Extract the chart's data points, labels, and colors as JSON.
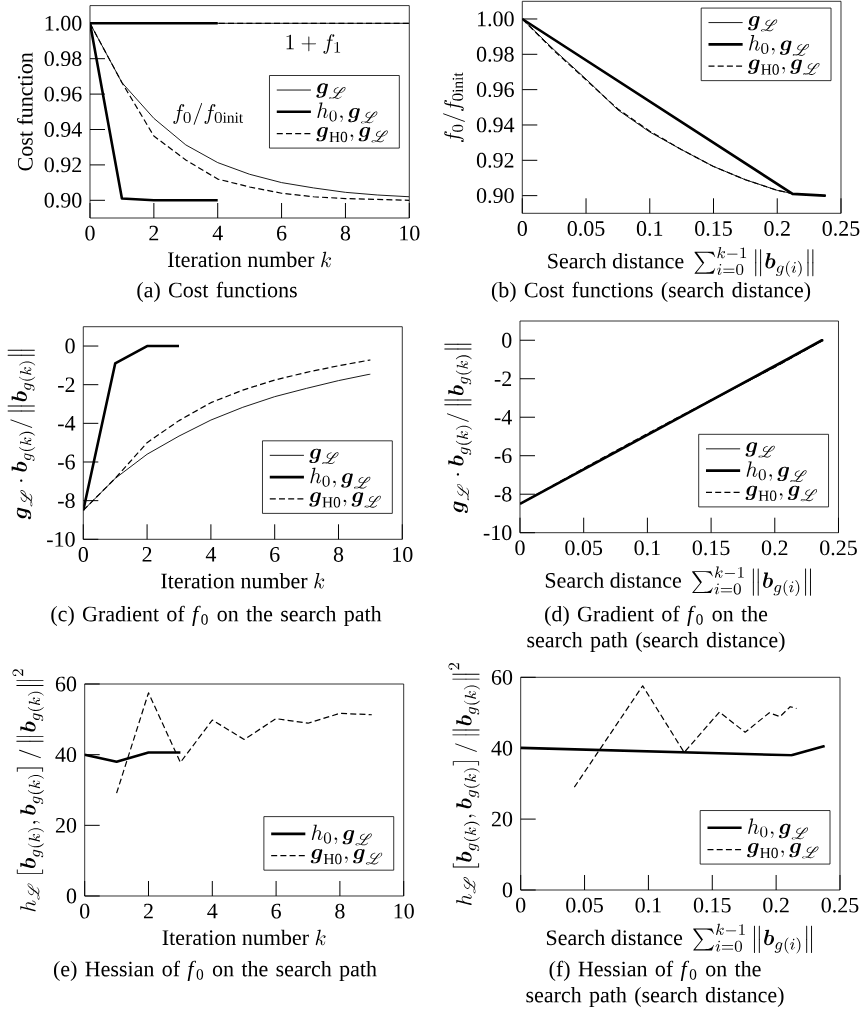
{
  "chart_data": [
    {
      "type": "line",
      "title": "(a) Cost functions",
      "xlabel": "\\text{Iteration number } k",
      "ylabel": "\\text{Cost function}",
      "xlim": [
        0,
        10
      ],
      "ylim": [
        0.89,
        1.01
      ],
      "xticks": [
        0,
        2,
        4,
        6,
        8,
        10
      ],
      "yticks": [
        {
          "value": 0.9,
          "label": "0.90"
        },
        {
          "value": 0.92,
          "label": "0.92"
        },
        {
          "value": 0.94,
          "label": "0.94"
        },
        {
          "value": 0.96,
          "label": "0.96"
        },
        {
          "value": 0.98,
          "label": "0.98"
        },
        {
          "value": 1.0,
          "label": "1.00"
        }
      ],
      "legend": "right",
      "annotations": [
        "1 + f_1",
        "f_0 / f_{0\\mathrm{init}}"
      ],
      "series": [
        {
          "name": "\\boldsymbol{g}_{\\mathscr{L}}",
          "color": "#000000",
          "line_style": "solid",
          "x": [
            0,
            1,
            2,
            3,
            4,
            5,
            6,
            7,
            8,
            9,
            10
          ],
          "values": [
            1.0,
            0.9665,
            0.9463,
            0.9313,
            0.9213,
            0.9147,
            0.91,
            0.907,
            0.9045,
            0.903,
            0.902
          ]
        },
        {
          "name": "h_0, \\boldsymbol{g}_{\\mathscr{L}}",
          "color": "#000000",
          "line_style": "solid",
          "x": [
            0,
            1,
            2,
            3,
            4
          ],
          "values": [
            1.0,
            0.901,
            0.9,
            0.9,
            0.9
          ]
        },
        {
          "name": "\\boldsymbol{g}_{\\mathrm{H0}}, \\boldsymbol{g}_{\\mathscr{L}}",
          "color": "#000000",
          "line_style": "dashed",
          "x": [
            0,
            1,
            2,
            3,
            4,
            5,
            6,
            7,
            8,
            9,
            10
          ],
          "values": [
            1.0,
            0.9665,
            0.9363,
            0.9228,
            0.912,
            0.9075,
            0.904,
            0.902,
            0.901,
            0.9005,
            0.9
          ]
        },
        {
          "color": "#000000",
          "line_style": "solid",
          "x": [
            0,
            10
          ],
          "values": [
            1.0,
            1.0
          ]
        },
        {
          "color": "#000000",
          "line_style": "solid",
          "x": [
            0,
            4
          ],
          "values": [
            1.0,
            1.0
          ]
        },
        {
          "color": "#000000",
          "line_style": "dashed",
          "x": [
            0,
            10
          ],
          "values": [
            1.0,
            1.0
          ]
        }
      ]
    },
    {
      "type": "line",
      "title": "(b) Cost functions (search distance)",
      "xlabel": "\\text{Search distance } \\sum_{i=0}^{k-1} \\left\\| \\boldsymbol{b}_{g(i)} \\right\\|",
      "ylabel": "f_0 / f_{0\\mathrm{init}}",
      "xlim": [
        0,
        0.25
      ],
      "ylim": [
        0.89,
        1.01
      ],
      "xticks": [
        0,
        0.05,
        0.1,
        0.15,
        0.2,
        0.25
      ],
      "yticks": [
        {
          "value": 0.9,
          "label": "0.90"
        },
        {
          "value": 0.92,
          "label": "0.92"
        },
        {
          "value": 0.94,
          "label": "0.94"
        },
        {
          "value": 0.96,
          "label": "0.96"
        },
        {
          "value": 0.98,
          "label": "0.98"
        },
        {
          "value": 1.0,
          "label": "1.00"
        }
      ],
      "legend": "top right",
      "series": [
        {
          "name": "\\boldsymbol{g}_{\\mathscr{L}}",
          "color": "#000000",
          "line_style": "solid",
          "x": [
            0,
            0.025,
            0.05,
            0.075,
            0.1,
            0.125,
            0.15,
            0.175,
            0.2,
            0.213,
            0.238
          ],
          "values": [
            1.0,
            0.9825,
            0.966,
            0.9485,
            0.936,
            0.926,
            0.9165,
            0.909,
            0.903,
            0.901,
            0.9
          ]
        },
        {
          "name": "h_0, \\boldsymbol{g}_{\\mathscr{L}}",
          "color": "#000000",
          "line_style": "solid",
          "x": [
            0,
            0.212,
            0.237,
            0.238
          ],
          "values": [
            1.0,
            0.901,
            0.9,
            0.9
          ]
        },
        {
          "name": "\\boldsymbol{g}_{\\mathrm{H0}}, \\boldsymbol{g}_{\\mathscr{L}}",
          "color": "#000000",
          "line_style": "dashed",
          "x": [
            0,
            0.025,
            0.05,
            0.075,
            0.1,
            0.125,
            0.15,
            0.175,
            0.2,
            0.213,
            0.238
          ],
          "values": [
            1.0,
            0.982,
            0.9655,
            0.949,
            0.9365,
            0.926,
            0.9165,
            0.909,
            0.903,
            0.901,
            0.9
          ]
        }
      ]
    },
    {
      "type": "line",
      "title": "(c) Gradient of *f*$_{0}$ on the search path",
      "xlabel": "\\text{Iteration number } k",
      "ylabel": "\\boldsymbol{g}_{\\mathscr{L}} \\cdot \\boldsymbol{b}_{g(k)} / \\left\\| \\boldsymbol{b}_{g(k)} \\right\\|",
      "xlim": [
        0,
        10
      ],
      "ylim": [
        -10,
        1
      ],
      "xticks": [
        0,
        2,
        4,
        6,
        8,
        10
      ],
      "yticks": [
        -10,
        -8,
        -6,
        -4,
        -2,
        0
      ],
      "legend": "bottom right",
      "series": [
        {
          "name": "\\boldsymbol{g}_{\\mathscr{L}}",
          "color": "#000000",
          "line_style": "solid",
          "x": [
            0,
            1,
            2,
            3,
            4,
            5,
            6,
            7,
            8,
            9
          ],
          "values": [
            -8.5,
            -6.85,
            -5.6,
            -4.66,
            -3.83,
            -3.17,
            -2.62,
            -2.19,
            -1.79,
            -1.45
          ]
        },
        {
          "name": "h_0, \\boldsymbol{g}_{\\mathscr{L}}",
          "color": "#000000",
          "line_style": "solid",
          "x": [
            0,
            1,
            2,
            3
          ],
          "values": [
            -8.5,
            -0.9,
            0,
            0
          ]
        },
        {
          "name": "\\boldsymbol{g}_{\\mathrm{H0}}, \\boldsymbol{g}_{\\mathscr{L}}",
          "color": "#000000",
          "line_style": "dashed",
          "x": [
            0,
            1,
            2,
            3,
            4,
            5,
            6,
            7,
            8,
            9
          ],
          "values": [
            -8.5,
            -6.85,
            -5.0,
            -3.86,
            -2.93,
            -2.28,
            -1.76,
            -1.36,
            -1.02,
            -0.72
          ]
        }
      ]
    },
    {
      "type": "line",
      "title": "(d) Gradient of *f*$_{0}$ on the search path (search distance)",
      "xlabel": "\\text{Search distance } \\sum_{i=0}^{k-1} \\left\\| \\boldsymbol{b}_{g(i)} \\right\\|",
      "ylabel": "\\boldsymbol{g}_{\\mathscr{L}} \\cdot \\boldsymbol{b}_{g(k)} / \\left\\| \\boldsymbol{b}_{g(k)} \\right\\|",
      "xlim": [
        0,
        0.25
      ],
      "ylim": [
        -10,
        1
      ],
      "xticks": [
        0,
        0.05,
        0.1,
        0.15,
        0.2,
        0.25
      ],
      "yticks": [
        -10,
        -8,
        -6,
        -4,
        -2,
        0
      ],
      "legend": "bottom right",
      "series": [
        {
          "name": "\\boldsymbol{g}_{\\mathscr{L}}",
          "color": "#000000",
          "line_style": "solid",
          "x": [
            0,
            0.05,
            0.1,
            0.15,
            0.2,
            0.238
          ],
          "values": [
            -8.5,
            -6.7,
            -4.9,
            -3.15,
            -1.4,
            0
          ]
        },
        {
          "name": "h_0, \\boldsymbol{g}_{\\mathscr{L}}",
          "color": "#000000",
          "line_style": "solid",
          "x": [
            0,
            0.212,
            0.237,
            0.238
          ],
          "values": [
            -8.5,
            -0.9,
            0,
            0
          ]
        },
        {
          "name": "\\boldsymbol{g}_{\\mathrm{H0}}, \\boldsymbol{g}_{\\mathscr{L}}",
          "color": "#000000",
          "line_style": "dashed",
          "x": [
            0,
            0.05,
            0.1,
            0.15,
            0.2,
            0.238
          ],
          "values": [
            -8.5,
            -6.65,
            -4.85,
            -3.1,
            -1.4,
            0
          ]
        }
      ]
    },
    {
      "type": "line",
      "title": "(e) Hessian of *f*$_{0}$ on the search path",
      "xlabel": "\\text{Iteration number } k",
      "ylabel": "h_{\\mathscr{L}} \\left[ \\boldsymbol{b}_{g(k)}, \\boldsymbol{b}_{g(k)} \\right] / \\left\\| \\boldsymbol{b}_{g(k)} \\right\\|^2",
      "xlim": [
        0,
        10
      ],
      "ylim": [
        0,
        60
      ],
      "xticks": [
        0,
        2,
        4,
        6,
        8,
        10
      ],
      "yticks": [
        0,
        20,
        40,
        60
      ],
      "legend": "bottom right",
      "series": [
        {
          "name": "h_0, \\boldsymbol{g}_{\\mathscr{L}}",
          "color": "#000000",
          "line_style": "solid",
          "x": [
            0,
            1,
            2,
            3
          ],
          "values": [
            40,
            38,
            40.6,
            40.6
          ]
        },
        {
          "name": "\\boldsymbol{g}_{\\mathrm{H0}}, \\boldsymbol{g}_{\\mathscr{L}}",
          "color": "#000000",
          "line_style": "dashed",
          "x": [
            1,
            2,
            3,
            4,
            5,
            6,
            7,
            8,
            9
          ],
          "values": [
            29.1,
            57.5,
            37.8,
            49.8,
            44.3,
            50.2,
            48.9,
            51.7,
            51.3
          ]
        }
      ]
    },
    {
      "type": "line",
      "title": "(f) Hessian of *f*$_{0}$ on the search path (search distance)",
      "xlabel": "\\text{Search distance } \\sum_{i=0}^{k-1} \\left\\| \\boldsymbol{b}_{g(i)} \\right\\|",
      "ylabel": "h_{\\mathscr{L}} \\left[ \\boldsymbol{b}_{g(k)}, \\boldsymbol{b}_{g(k)} \\right] / \\left\\| \\boldsymbol{b}_{g(k)} \\right\\|^2",
      "xlim": [
        0,
        0.25
      ],
      "ylim": [
        0,
        60
      ],
      "xticks": [
        0,
        0.05,
        0.1,
        0.15,
        0.2,
        0.25
      ],
      "yticks": [
        0,
        20,
        40,
        60
      ],
      "legend": "bottom right",
      "series": [
        {
          "name": "h_0, \\boldsymbol{g}_{\\mathscr{L}}",
          "color": "#000000",
          "line_style": "solid",
          "x": [
            0,
            0.212,
            0.238
          ],
          "values": [
            40.1,
            38.0,
            40.6
          ]
        },
        {
          "name": "\\boldsymbol{g}_{\\mathrm{H0}}, \\boldsymbol{g}_{\\mathscr{L}}",
          "color": "#000000",
          "line_style": "dashed",
          "x": [
            0.042,
            0.0955,
            0.128,
            0.1556,
            0.1757,
            0.1947,
            0.203,
            0.211,
            0.216
          ],
          "values": [
            29.0,
            57.6,
            38.8,
            50.2,
            44.5,
            50.0,
            48.9,
            51.7,
            51.2
          ]
        }
      ]
    }
  ]
}
